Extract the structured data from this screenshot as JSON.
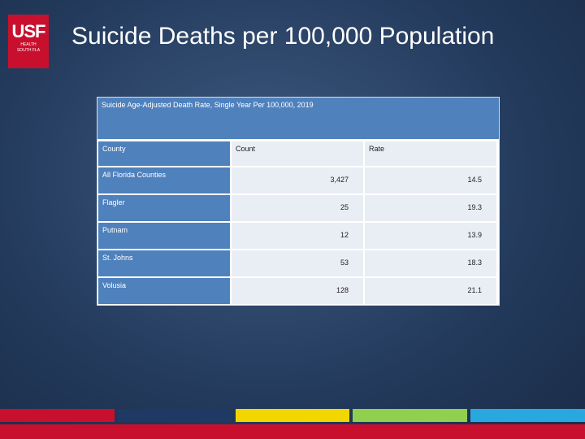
{
  "logo": {
    "mark": "USF",
    "line1": "HEALTH",
    "line2": "SOUTH FLA"
  },
  "header": {
    "title": "Suicide Deaths per 100,000 Population"
  },
  "table": {
    "caption": "Suicide Age-Adjusted Death Rate, Single Year Per 100,000, 2019",
    "columns": [
      "County",
      "Count",
      "Rate"
    ],
    "rows": [
      [
        "All Florida Counties",
        "3,427",
        "14.5"
      ],
      [
        "Flagler",
        "25",
        "19.3"
      ],
      [
        "Putnam",
        "12",
        "13.9"
      ],
      [
        "St. Johns",
        "53",
        "18.3"
      ],
      [
        "Volusia",
        "128",
        "21.1"
      ]
    ]
  }
}
